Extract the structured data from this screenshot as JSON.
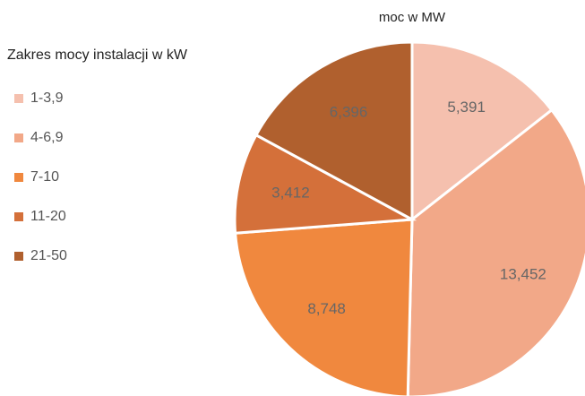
{
  "chart_data": {
    "type": "pie",
    "title": "moc w MW",
    "legend_title": "Zakres mocy instalacji w kW",
    "categories": [
      "1-3,9",
      "4-6,9",
      "7-10",
      "11-20",
      "21-50"
    ],
    "values": [
      5.391,
      13.452,
      8.748,
      3.412,
      6.396
    ],
    "value_labels": [
      "5,391",
      "13,452",
      "8,748",
      "3,412",
      "6,396"
    ],
    "colors": [
      "#f5c0ae",
      "#f2a888",
      "#f0883e",
      "#d4703a",
      "#b0602e"
    ],
    "legend": "left"
  }
}
